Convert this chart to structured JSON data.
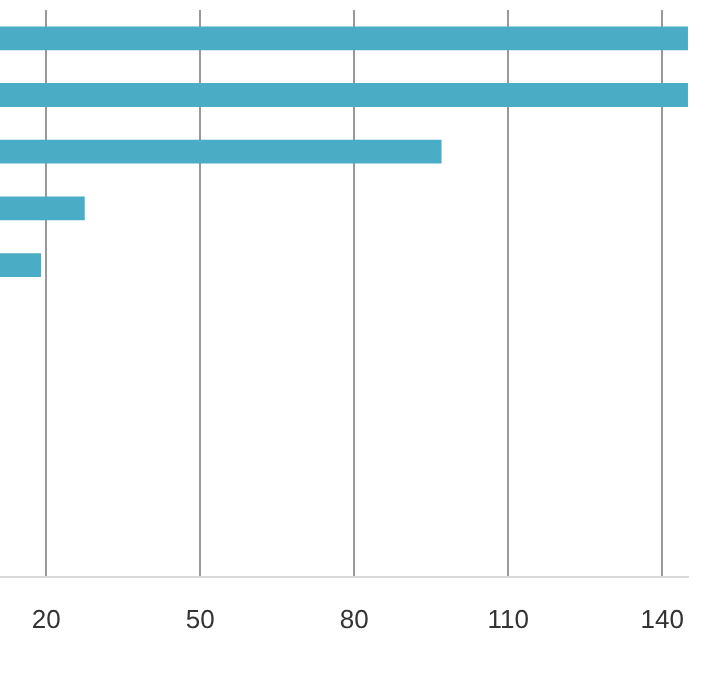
{
  "chart_data": {
    "type": "bar",
    "orientation": "horizontal",
    "categories": [
      null,
      null,
      null,
      null,
      null,
      null,
      null,
      null,
      null,
      null
    ],
    "values": [
      145,
      145,
      97,
      27.5,
      19,
      null,
      null,
      null,
      null,
      null
    ],
    "color": "#4bacc6",
    "xlim": [
      11,
      145
    ],
    "xticks": [
      20,
      50,
      80,
      110,
      140
    ],
    "grid": "x",
    "legend": false,
    "tick_labels": "x"
  }
}
